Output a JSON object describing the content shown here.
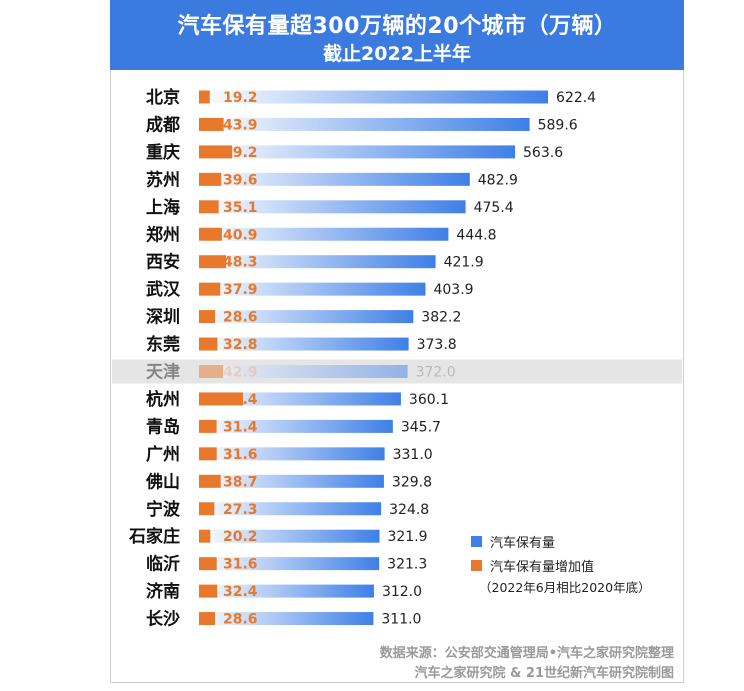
{
  "header": {
    "title": "汽车保有量超300万辆的20个城市（万辆）",
    "subtitle": "截止2022上半年"
  },
  "legend": {
    "total_label": "汽车保有量",
    "increase_label": "汽车保有量增加值",
    "increase_note": "（2022年6月相比2020年底）"
  },
  "source": {
    "line1": "数据来源：公安部交通管理局•汽车之家研究院整理",
    "line2": "汽车之家研究院 & 21世纪新汽车研究院制图"
  },
  "colors": {
    "header_bg": "#3b7be0",
    "total_bar_start": "#ffffff",
    "total_bar_end": "#3f7fe6",
    "increase_bar": "#e8792c",
    "highlight_row": "#e5e5e5"
  },
  "chart_data": {
    "type": "bar",
    "orientation": "horizontal",
    "categories": [
      "北京",
      "成都",
      "重庆",
      "苏州",
      "上海",
      "郑州",
      "西安",
      "武汉",
      "深圳",
      "东莞",
      "天津",
      "杭州",
      "青岛",
      "广州",
      "佛山",
      "宁波",
      "石家庄",
      "临沂",
      "济南",
      "长沙"
    ],
    "series": [
      {
        "name": "汽车保有量",
        "values": [
          622.4,
          589.6,
          563.6,
          482.9,
          475.4,
          444.8,
          421.9,
          403.9,
          382.2,
          373.8,
          372.0,
          360.1,
          345.7,
          331.0,
          329.8,
          324.8,
          321.9,
          321.3,
          312.0,
          311.0
        ]
      },
      {
        "name": "汽车保有量增加值",
        "values": [
          19.2,
          43.9,
          59.2,
          39.6,
          35.1,
          40.9,
          48.3,
          37.9,
          28.6,
          32.8,
          42.9,
          78.4,
          31.4,
          31.6,
          38.7,
          27.3,
          20.2,
          31.6,
          32.4,
          28.6
        ]
      }
    ],
    "highlighted_category": "天津",
    "xlim": [
      0,
      622.4
    ],
    "grid": false,
    "legend_position": "bottom-right"
  }
}
